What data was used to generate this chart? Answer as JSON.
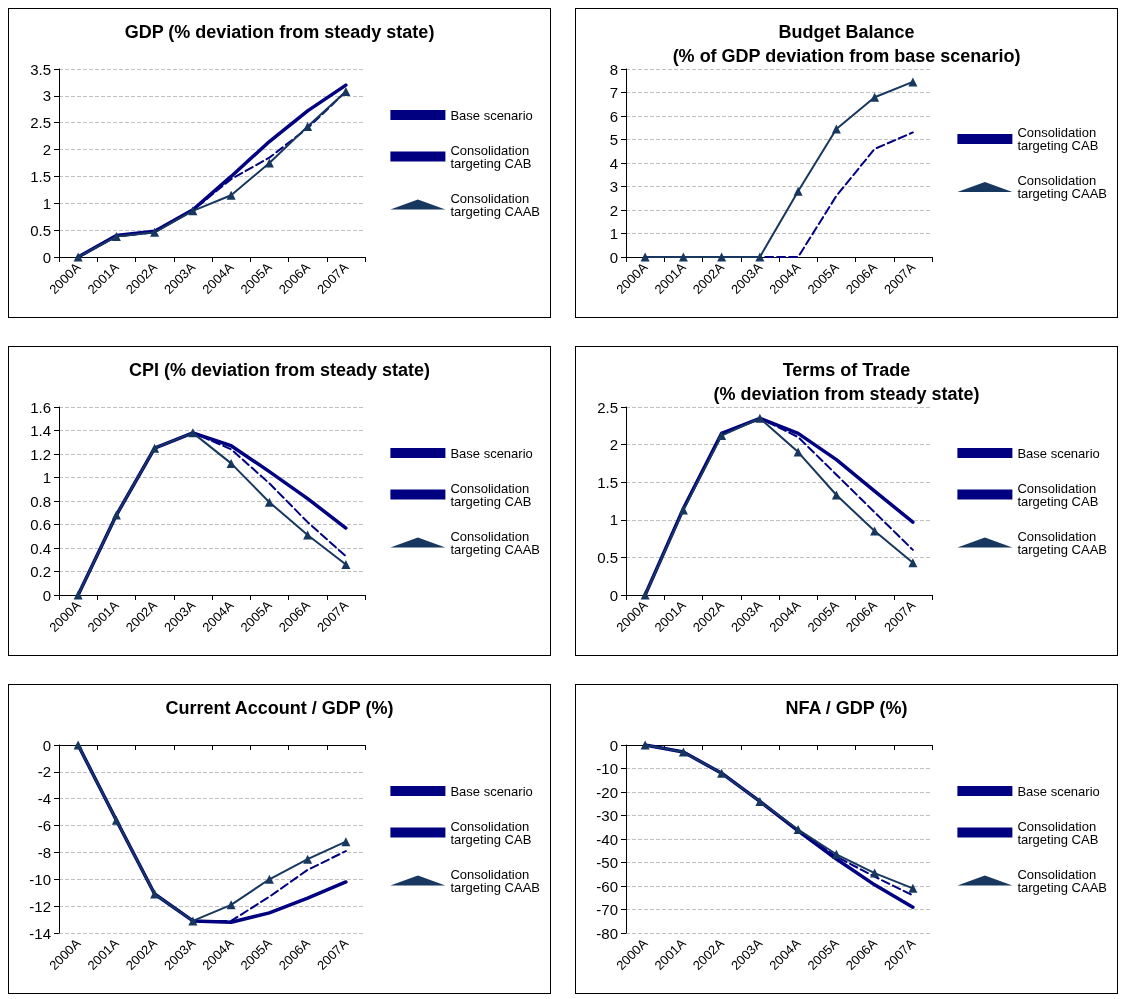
{
  "chart_data": [
    {
      "type": "line",
      "title": "GDP (% deviation from steady state)",
      "categories": [
        "2000A",
        "2001A",
        "2002A",
        "2003A",
        "2004A",
        "2005A",
        "2006A",
        "2007A"
      ],
      "ylim": [
        0,
        3.5
      ],
      "yticks": [
        0,
        0.5,
        1,
        1.5,
        2,
        2.5,
        3,
        3.5
      ],
      "grid": "y",
      "legend": "right",
      "series": [
        {
          "name": "Base scenario",
          "color": "#000080",
          "line_style": "solid",
          "marker": "none",
          "values": [
            0,
            0.4,
            0.48,
            0.88,
            1.5,
            2.15,
            2.72,
            3.2
          ]
        },
        {
          "name": "Consolidation targeting CAB",
          "color": "#000080",
          "line_style": "dashed",
          "marker": "none",
          "values": [
            0,
            0.38,
            0.46,
            0.87,
            1.45,
            1.85,
            2.4,
            3.08
          ]
        },
        {
          "name": "Consolidation targeting CAAB",
          "color": "#17375e",
          "line_style": "solid",
          "marker": "triangle",
          "values": [
            0,
            0.38,
            0.46,
            0.86,
            1.15,
            1.75,
            2.43,
            3.08
          ]
        }
      ]
    },
    {
      "type": "line",
      "title": "Budget Balance\n(% of GDP deviation from base scenario)",
      "categories": [
        "2000A",
        "2001A",
        "2002A",
        "2003A",
        "2004A",
        "2005A",
        "2006A",
        "2007A"
      ],
      "ylim": [
        0,
        8
      ],
      "yticks": [
        0,
        1,
        2,
        3,
        4,
        5,
        6,
        7,
        8
      ],
      "grid": "y",
      "legend": "right",
      "series": [
        {
          "name": "Consolidation targeting CAB",
          "color": "#000080",
          "line_style": "dashed",
          "marker": "none",
          "values": [
            0,
            0,
            0,
            0,
            0,
            2.6,
            4.6,
            5.3
          ]
        },
        {
          "name": "Consolidation targeting CAAB",
          "color": "#17375e",
          "line_style": "solid",
          "marker": "triangle",
          "values": [
            0,
            0,
            0,
            0,
            2.8,
            5.45,
            6.8,
            7.45
          ]
        }
      ]
    },
    {
      "type": "line",
      "title": "CPI (% deviation from steady state)",
      "categories": [
        "2000A",
        "2001A",
        "2002A",
        "2003A",
        "2004A",
        "2005A",
        "2006A",
        "2007A"
      ],
      "ylim": [
        0,
        1.6
      ],
      "yticks": [
        0,
        0.2,
        0.4,
        0.6,
        0.8,
        1,
        1.2,
        1.4,
        1.6
      ],
      "grid": "y",
      "legend": "right",
      "series": [
        {
          "name": "Base scenario",
          "color": "#000080",
          "line_style": "solid",
          "marker": "none",
          "values": [
            0,
            0.68,
            1.25,
            1.38,
            1.27,
            1.05,
            0.82,
            0.57
          ]
        },
        {
          "name": "Consolidation targeting CAB",
          "color": "#000080",
          "line_style": "dashed",
          "marker": "none",
          "values": [
            0,
            0.68,
            1.25,
            1.38,
            1.24,
            0.95,
            0.62,
            0.33
          ]
        },
        {
          "name": "Consolidation targeting CAAB",
          "color": "#17375e",
          "line_style": "solid",
          "marker": "triangle",
          "values": [
            0,
            0.68,
            1.25,
            1.38,
            1.12,
            0.79,
            0.51,
            0.26
          ]
        }
      ]
    },
    {
      "type": "line",
      "title": "Terms of Trade\n(% deviation from steady state)",
      "categories": [
        "2000A",
        "2001A",
        "2002A",
        "2003A",
        "2004A",
        "2005A",
        "2006A",
        "2007A"
      ],
      "ylim": [
        0,
        2.5
      ],
      "yticks": [
        0,
        0.5,
        1,
        1.5,
        2,
        2.5
      ],
      "grid": "y",
      "legend": "right",
      "series": [
        {
          "name": "Base scenario",
          "color": "#000080",
          "line_style": "solid",
          "marker": "none",
          "values": [
            0,
            1.15,
            2.15,
            2.35,
            2.15,
            1.8,
            1.38,
            0.97
          ]
        },
        {
          "name": "Consolidation targeting CAB",
          "color": "#000080",
          "line_style": "dashed",
          "marker": "none",
          "values": [
            0,
            1.15,
            2.13,
            2.35,
            2.1,
            1.6,
            1.1,
            0.6
          ]
        },
        {
          "name": "Consolidation targeting CAAB",
          "color": "#17375e",
          "line_style": "solid",
          "marker": "triangle",
          "values": [
            0,
            1.13,
            2.12,
            2.35,
            1.9,
            1.33,
            0.85,
            0.43
          ]
        }
      ]
    },
    {
      "type": "line",
      "title": "Current Account / GDP (%)",
      "categories": [
        "2000A",
        "2001A",
        "2002A",
        "2003A",
        "2004A",
        "2005A",
        "2006A",
        "2007A"
      ],
      "ylim": [
        -14,
        0
      ],
      "yticks": [
        -14,
        -12,
        -10,
        -8,
        -6,
        -4,
        -2,
        0
      ],
      "grid": "y",
      "legend": "right",
      "series": [
        {
          "name": "Base scenario",
          "color": "#000080",
          "line_style": "solid",
          "marker": "none",
          "values": [
            0,
            -5.6,
            -11.1,
            -13.1,
            -13.2,
            -12.5,
            -11.4,
            -10.2
          ]
        },
        {
          "name": "Consolidation targeting CAB",
          "color": "#000080",
          "line_style": "dashed",
          "marker": "none",
          "values": [
            0,
            -5.6,
            -11.1,
            -13.1,
            -13.1,
            -11.3,
            -9.3,
            -7.9
          ]
        },
        {
          "name": "Consolidation targeting CAAB",
          "color": "#17375e",
          "line_style": "solid",
          "marker": "triangle",
          "values": [
            0,
            -5.6,
            -11.1,
            -13.1,
            -11.9,
            -10,
            -8.5,
            -7.2
          ]
        }
      ]
    },
    {
      "type": "line",
      "title": "NFA / GDP (%)",
      "categories": [
        "2000A",
        "2001A",
        "2002A",
        "2003A",
        "2004A",
        "2005A",
        "2006A",
        "2007A"
      ],
      "ylim": [
        -80,
        0
      ],
      "yticks": [
        -80,
        -70,
        -60,
        -50,
        -40,
        -30,
        -20,
        -10,
        0
      ],
      "grid": "y",
      "legend": "right",
      "series": [
        {
          "name": "Base scenario",
          "color": "#000080",
          "line_style": "solid",
          "marker": "none",
          "values": [
            0,
            -3,
            -12,
            -24,
            -36.5,
            -48.5,
            -59.5,
            -69
          ]
        },
        {
          "name": "Consolidation targeting CAB",
          "color": "#000080",
          "line_style": "dashed",
          "marker": "none",
          "values": [
            0,
            -3,
            -12,
            -24,
            -36.5,
            -47.5,
            -56,
            -64
          ]
        },
        {
          "name": "Consolidation targeting CAAB",
          "color": "#17375e",
          "line_style": "solid",
          "marker": "triangle",
          "values": [
            0,
            -3,
            -12,
            -24,
            -36,
            -46.5,
            -54.5,
            -61
          ]
        }
      ]
    }
  ]
}
